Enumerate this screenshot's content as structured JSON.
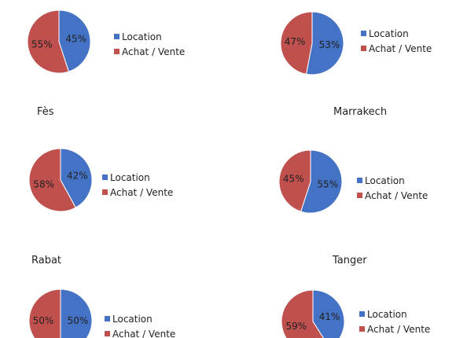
{
  "colors": {
    "location": "#4472C4",
    "achat": "#C0504D",
    "edge": "#ffffff"
  },
  "chart_data": [
    {
      "type": "pie",
      "title": "",
      "legend": [
        "Location",
        "Achat / Vente"
      ],
      "slices": [
        {
          "label": "Location",
          "value": 45,
          "display": "45%"
        },
        {
          "label": "Achat / Vente",
          "value": 55,
          "display": "55%"
        }
      ]
    },
    {
      "type": "pie",
      "title": "",
      "legend": [
        "Location",
        "Achat / Vente"
      ],
      "slices": [
        {
          "label": "Location",
          "value": 53,
          "display": "53%"
        },
        {
          "label": "Achat / Vente",
          "value": 47,
          "display": "47%"
        }
      ]
    },
    {
      "type": "pie",
      "title": "Fès",
      "legend": [
        "Location",
        "Achat / Vente"
      ],
      "slices": [
        {
          "label": "Location",
          "value": 42,
          "display": "42%"
        },
        {
          "label": "Achat / Vente",
          "value": 58,
          "display": "58%"
        }
      ]
    },
    {
      "type": "pie",
      "title": "Marrakech",
      "legend": [
        "Location",
        "Achat / Vente"
      ],
      "slices": [
        {
          "label": "Location",
          "value": 55,
          "display": "55%"
        },
        {
          "label": "Achat / Vente",
          "value": 45,
          "display": "45%"
        }
      ]
    },
    {
      "type": "pie",
      "title": "Rabat",
      "legend": [
        "Location",
        "Achat / Vente"
      ],
      "slices": [
        {
          "label": "Location",
          "value": 50,
          "display": "50%"
        },
        {
          "label": "Achat / Vente",
          "value": 50,
          "display": "50%"
        }
      ]
    },
    {
      "type": "pie",
      "title": "Tanger",
      "legend": [
        "Location",
        "Achat / Vente"
      ],
      "slices": [
        {
          "label": "Location",
          "value": 41,
          "display": "41%"
        },
        {
          "label": "Achat / Vente",
          "value": 59,
          "display": "59%"
        }
      ]
    }
  ]
}
